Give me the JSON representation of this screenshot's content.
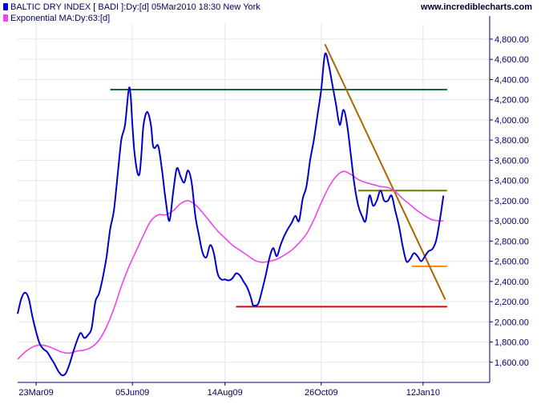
{
  "legend": {
    "series1_label": "BALTIC DRY INDEX [ BADI ]:Dy:[d]  05Mar2010 18:30 New York",
    "series2_label": "Exponential MA:Dy:63:[d]"
  },
  "watermark": "www.incrediblecharts.com",
  "colors": {
    "price": "#0000cc",
    "ma": "#ee44ee",
    "resistance": "#116633",
    "support": "#dd0000",
    "trendline": "#aa6600",
    "upper_band": "#777700",
    "lower_band": "#ff8800",
    "grid": "#e6e6e6",
    "axis": "#000066",
    "tick_text": "#000066"
  },
  "chart_data": {
    "type": "line",
    "xlim": [
      0,
      255
    ],
    "ylim": [
      1400,
      4950
    ],
    "y_ticks": [
      "1,600.00",
      "1,800.00",
      "2,000.00",
      "2,200.00",
      "2,400.00",
      "2,600.00",
      "2,800.00",
      "3,000.00",
      "3,200.00",
      "3,400.00",
      "3,600.00",
      "3,800.00",
      "4,000.00",
      "4,200.00",
      "4,400.00",
      "4,600.00",
      "4,800.00"
    ],
    "y_tick_values": [
      1600,
      1800,
      2000,
      2200,
      2400,
      2600,
      2800,
      3000,
      3200,
      3400,
      3600,
      3800,
      4000,
      4200,
      4400,
      4600,
      4800
    ],
    "x_ticks": [
      {
        "label": "23Mar09",
        "x": 10
      },
      {
        "label": "05Jun09",
        "x": 62
      },
      {
        "label": "14Aug09",
        "x": 112
      },
      {
        "label": "26Oct09",
        "x": 164
      },
      {
        "label": "12Jan10",
        "x": 219
      }
    ],
    "series": [
      {
        "name": "BALTIC DRY INDEX [ BADI ]",
        "points": [
          [
            0,
            2080
          ],
          [
            2,
            2230
          ],
          [
            4,
            2290
          ],
          [
            6,
            2230
          ],
          [
            8,
            2050
          ],
          [
            10,
            1900
          ],
          [
            12,
            1780
          ],
          [
            14,
            1730
          ],
          [
            16,
            1700
          ],
          [
            18,
            1640
          ],
          [
            20,
            1580
          ],
          [
            22,
            1510
          ],
          [
            24,
            1470
          ],
          [
            26,
            1490
          ],
          [
            28,
            1580
          ],
          [
            30,
            1700
          ],
          [
            32,
            1810
          ],
          [
            34,
            1890
          ],
          [
            36,
            1840
          ],
          [
            38,
            1870
          ],
          [
            40,
            1940
          ],
          [
            42,
            2200
          ],
          [
            44,
            2280
          ],
          [
            46,
            2440
          ],
          [
            48,
            2640
          ],
          [
            50,
            2920
          ],
          [
            52,
            3100
          ],
          [
            54,
            3450
          ],
          [
            56,
            3800
          ],
          [
            58,
            3950
          ],
          [
            60,
            4300
          ],
          [
            61,
            4250
          ],
          [
            62,
            3950
          ],
          [
            63,
            3700
          ],
          [
            64,
            3550
          ],
          [
            65,
            3460
          ],
          [
            66,
            3480
          ],
          [
            67,
            3700
          ],
          [
            68,
            3950
          ],
          [
            70,
            4080
          ],
          [
            72,
            3950
          ],
          [
            73,
            3760
          ],
          [
            74,
            3720
          ],
          [
            76,
            3740
          ],
          [
            78,
            3500
          ],
          [
            80,
            3200
          ],
          [
            82,
            3000
          ],
          [
            84,
            3280
          ],
          [
            86,
            3520
          ],
          [
            88,
            3440
          ],
          [
            90,
            3380
          ],
          [
            92,
            3500
          ],
          [
            94,
            3380
          ],
          [
            96,
            3050
          ],
          [
            98,
            2850
          ],
          [
            100,
            2680
          ],
          [
            102,
            2640
          ],
          [
            104,
            2760
          ],
          [
            106,
            2680
          ],
          [
            108,
            2480
          ],
          [
            110,
            2420
          ],
          [
            112,
            2420
          ],
          [
            114,
            2410
          ],
          [
            116,
            2430
          ],
          [
            118,
            2480
          ],
          [
            120,
            2460
          ],
          [
            122,
            2400
          ],
          [
            124,
            2340
          ],
          [
            126,
            2240
          ],
          [
            127,
            2170
          ],
          [
            128,
            2160
          ],
          [
            130,
            2180
          ],
          [
            132,
            2310
          ],
          [
            134,
            2460
          ],
          [
            136,
            2630
          ],
          [
            138,
            2730
          ],
          [
            140,
            2650
          ],
          [
            142,
            2760
          ],
          [
            144,
            2850
          ],
          [
            146,
            2920
          ],
          [
            148,
            2980
          ],
          [
            150,
            3050
          ],
          [
            152,
            3000
          ],
          [
            154,
            3220
          ],
          [
            156,
            3340
          ],
          [
            158,
            3600
          ],
          [
            160,
            3800
          ],
          [
            162,
            4050
          ],
          [
            164,
            4300
          ],
          [
            166,
            4650
          ],
          [
            168,
            4550
          ],
          [
            170,
            4350
          ],
          [
            172,
            4150
          ],
          [
            174,
            3950
          ],
          [
            176,
            4100
          ],
          [
            178,
            3950
          ],
          [
            180,
            3650
          ],
          [
            182,
            3350
          ],
          [
            184,
            3150
          ],
          [
            186,
            3050
          ],
          [
            188,
            3000
          ],
          [
            190,
            3250
          ],
          [
            192,
            3150
          ],
          [
            194,
            3200
          ],
          [
            196,
            3300
          ],
          [
            198,
            3200
          ],
          [
            200,
            3200
          ],
          [
            202,
            3250
          ],
          [
            204,
            3100
          ],
          [
            206,
            2950
          ],
          [
            208,
            2750
          ],
          [
            210,
            2600
          ],
          [
            212,
            2620
          ],
          [
            214,
            2680
          ],
          [
            216,
            2650
          ],
          [
            218,
            2600
          ],
          [
            220,
            2650
          ],
          [
            222,
            2700
          ],
          [
            224,
            2720
          ],
          [
            226,
            2800
          ],
          [
            228,
            3000
          ],
          [
            230,
            3250
          ]
        ]
      },
      {
        "name": "Exponential MA",
        "points": [
          [
            0,
            1630
          ],
          [
            4,
            1700
          ],
          [
            8,
            1750
          ],
          [
            12,
            1770
          ],
          [
            16,
            1760
          ],
          [
            20,
            1730
          ],
          [
            24,
            1700
          ],
          [
            28,
            1690
          ],
          [
            32,
            1710
          ],
          [
            36,
            1720
          ],
          [
            40,
            1750
          ],
          [
            44,
            1820
          ],
          [
            48,
            1950
          ],
          [
            52,
            2130
          ],
          [
            56,
            2350
          ],
          [
            60,
            2540
          ],
          [
            64,
            2700
          ],
          [
            68,
            2860
          ],
          [
            72,
            3000
          ],
          [
            76,
            3060
          ],
          [
            80,
            3060
          ],
          [
            84,
            3100
          ],
          [
            88,
            3170
          ],
          [
            92,
            3200
          ],
          [
            96,
            3160
          ],
          [
            100,
            3080
          ],
          [
            104,
            2990
          ],
          [
            108,
            2900
          ],
          [
            112,
            2830
          ],
          [
            116,
            2760
          ],
          [
            120,
            2710
          ],
          [
            124,
            2660
          ],
          [
            128,
            2610
          ],
          [
            132,
            2590
          ],
          [
            136,
            2600
          ],
          [
            140,
            2620
          ],
          [
            144,
            2660
          ],
          [
            148,
            2710
          ],
          [
            152,
            2780
          ],
          [
            156,
            2870
          ],
          [
            160,
            3010
          ],
          [
            164,
            3180
          ],
          [
            168,
            3330
          ],
          [
            172,
            3440
          ],
          [
            176,
            3490
          ],
          [
            180,
            3460
          ],
          [
            184,
            3410
          ],
          [
            188,
            3380
          ],
          [
            192,
            3360
          ],
          [
            196,
            3340
          ],
          [
            200,
            3330
          ],
          [
            204,
            3290
          ],
          [
            208,
            3220
          ],
          [
            212,
            3160
          ],
          [
            216,
            3100
          ],
          [
            220,
            3050
          ],
          [
            224,
            3010
          ],
          [
            228,
            3000
          ],
          [
            230,
            3000
          ]
        ]
      }
    ],
    "annotations": [
      {
        "kind": "horizontal",
        "name": "resistance-line",
        "y": 4300,
        "x1": 50,
        "x2": 232,
        "color_key": "resistance"
      },
      {
        "kind": "horizontal",
        "name": "support-line",
        "y": 2150,
        "x1": 118,
        "x2": 232,
        "color_key": "support"
      },
      {
        "kind": "horizontal",
        "name": "upper-band-line",
        "y": 3300,
        "x1": 184,
        "x2": 232,
        "color_key": "upper_band"
      },
      {
        "kind": "horizontal",
        "name": "lower-band-line",
        "y": 2550,
        "x1": 213,
        "x2": 232,
        "color_key": "lower_band"
      },
      {
        "kind": "segment",
        "name": "down-trendline",
        "x1": 166,
        "y1": 4750,
        "x2": 231,
        "y2": 2220,
        "color_key": "trendline"
      }
    ],
    "grid": true,
    "legend_position": "top-left"
  }
}
